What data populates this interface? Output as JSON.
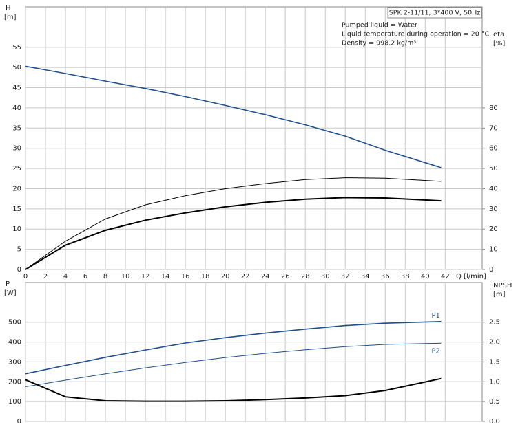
{
  "chart_data": [
    {
      "type": "line",
      "title": "SPK 2-11/11, 3*400 V, 50Hz",
      "annotations": [
        "Pumped liquid = Water",
        "Liquid temperature during operation = 20 °C",
        "Density = 998.2 kg/m³"
      ],
      "xlabel": "Q [l/min]",
      "ylabel": "H",
      "yunit": "[m]",
      "y2label": "eta",
      "y2unit": "[%]",
      "x": [
        0,
        4,
        8,
        12,
        16,
        20,
        24,
        28,
        32,
        36,
        41.6
      ],
      "series": [
        {
          "color": "#1f4e8c",
          "line_width": 1.6,
          "values": [
            50.3,
            48.5,
            46.6,
            44.8,
            42.8,
            40.6,
            38.3,
            35.8,
            33,
            29.5,
            25.2
          ]
        },
        {
          "color": "#000000",
          "line_width": 1,
          "axis": "y2",
          "values": [
            0,
            14,
            25,
            32,
            36.5,
            40,
            42.5,
            44.5,
            45.4,
            45.2,
            43.6
          ]
        },
        {
          "color": "#000000",
          "line_width": 2,
          "axis": "y2",
          "values": [
            0,
            12,
            19.4,
            24.4,
            28,
            31,
            33.2,
            34.8,
            35.6,
            35.4,
            34
          ]
        }
      ],
      "xlim": [
        0,
        45.7
      ],
      "xticks": [
        0,
        2,
        4,
        6,
        8,
        10,
        12,
        14,
        16,
        18,
        20,
        22,
        24,
        26,
        28,
        30,
        32,
        34,
        36,
        38,
        40,
        42
      ],
      "show_xtick_labels": true,
      "ylim": [
        0,
        65
      ],
      "yticks": [
        0,
        5,
        10,
        15,
        20,
        25,
        30,
        35,
        40,
        45,
        50,
        55
      ],
      "y2lim": [
        0,
        130
      ],
      "y2ticks": [
        0,
        10,
        20,
        30,
        40,
        50,
        60,
        70,
        80
      ],
      "grid": true
    },
    {
      "type": "line",
      "ylabel": "P",
      "yunit": "[W]",
      "y2label": "NPSH",
      "y2unit": "[m]",
      "x": [
        0,
        4,
        8,
        12,
        16,
        20,
        24,
        28,
        32,
        36,
        41.6
      ],
      "series": [
        {
          "name": "P1",
          "color": "#1f4e8c",
          "line_width": 1.6,
          "values": [
            240,
            282,
            323,
            360,
            395,
            422,
            445,
            465,
            483,
            495,
            503
          ]
        },
        {
          "name": "P2",
          "color": "#1f4e8c",
          "line_width": 1,
          "values": [
            175,
            208,
            240,
            270,
            297,
            322,
            343,
            361,
            377,
            388,
            394
          ]
        },
        {
          "color": "#000000",
          "line_width": 2,
          "axis": "y2",
          "values": [
            1.05,
            0.62,
            0.52,
            0.51,
            0.51,
            0.52,
            0.55,
            0.59,
            0.65,
            0.78,
            1.08
          ]
        }
      ],
      "xlim": [
        0,
        45.7
      ],
      "xticks": [
        0,
        2,
        4,
        6,
        8,
        10,
        12,
        14,
        16,
        18,
        20,
        22,
        24,
        26,
        28,
        30,
        32,
        34,
        36,
        38,
        40,
        42
      ],
      "show_xtick_labels": false,
      "ylim": [
        0,
        700
      ],
      "yticks": [
        0,
        100,
        200,
        300,
        400,
        500
      ],
      "y2lim": [
        0,
        3.5
      ],
      "y2ticks": [
        {
          "value": 0,
          "label": "0.0"
        },
        0.5,
        {
          "value": 1,
          "label": "1.0"
        },
        1.5,
        {
          "value": 2,
          "label": "2.0"
        },
        2.5
      ],
      "grid": true
    }
  ]
}
